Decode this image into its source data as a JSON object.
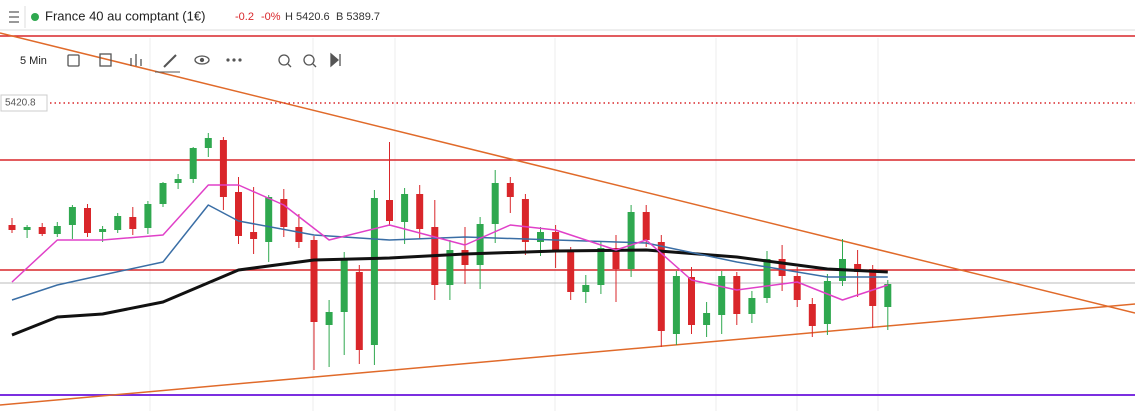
{
  "header": {
    "title": "France 40 au comptant (1€)",
    "change": "-0.2",
    "change_pct": "-0%",
    "high": "H 5420.6",
    "low": "B 5389.7"
  },
  "toolbar": {
    "interval": "5 Min"
  },
  "chart_data": {
    "type": "candlestick",
    "ylim": [
      5359.2,
      5433.4
    ],
    "price_label": 5420.8,
    "up_color": "#2fa84f",
    "down_color": "#d9262a",
    "open": [
      5396.4,
      5395.4,
      5396.0,
      5394.6,
      5396.4,
      5399.8,
      5395.0,
      5395.4,
      5398.0,
      5395.8,
      5400.6,
      5404.8,
      5405.6,
      5411.8,
      5413.4,
      5403.0,
      5395.0,
      5393.0,
      5401.6,
      5396.0,
      5393.4,
      5376.4,
      5379.0,
      5387.0,
      5372.4,
      5401.4,
      5397.0,
      5402.6,
      5396.0,
      5384.4,
      5391.4,
      5388.4,
      5396.6,
      5404.8,
      5401.6,
      5393.0,
      5395.0,
      5391.0,
      5383.0,
      5384.4,
      5391.8,
      5387.6,
      5399.0,
      5393.0,
      5374.6,
      5386.0,
      5376.4,
      5378.4,
      5386.2,
      5378.6,
      5381.8,
      5389.6,
      5386.2,
      5380.6,
      5376.6,
      5385.2,
      5388.6,
      5387.6,
      5380.0
    ],
    "high": [
      5397.8,
      5396.4,
      5396.8,
      5397.0,
      5400.4,
      5400.6,
      5396.2,
      5398.8,
      5400.0,
      5401.2,
      5405.0,
      5406.6,
      5412.0,
      5414.8,
      5414.0,
      5406.0,
      5404.0,
      5402.4,
      5403.6,
      5398.6,
      5394.2,
      5381.4,
      5391.0,
      5388.4,
      5403.4,
      5413.0,
      5403.8,
      5404.4,
      5401.4,
      5393.4,
      5396.0,
      5398.0,
      5407.4,
      5406.0,
      5402.6,
      5396.0,
      5396.4,
      5392.0,
      5386.4,
      5393.2,
      5394.4,
      5400.4,
      5400.4,
      5394.4,
      5387.2,
      5388.0,
      5381.0,
      5387.2,
      5387.0,
      5383.2,
      5391.2,
      5392.4,
      5388.0,
      5381.8,
      5386.6,
      5393.6,
      5391.4,
      5388.4,
      5385.4
    ],
    "low": [
      5394.8,
      5393.8,
      5394.2,
      5394.0,
      5393.6,
      5394.0,
      5393.0,
      5394.8,
      5394.4,
      5394.6,
      5400.0,
      5403.6,
      5404.8,
      5410.0,
      5399.4,
      5392.6,
      5390.6,
      5389.0,
      5394.0,
      5391.8,
      5367.4,
      5368.0,
      5370.4,
      5368.6,
      5368.4,
      5396.2,
      5392.6,
      5393.6,
      5381.4,
      5381.4,
      5384.6,
      5383.6,
      5392.8,
      5398.8,
      5390.4,
      5390.2,
      5387.8,
      5381.4,
      5380.8,
      5382.6,
      5381.0,
      5386.0,
      5392.0,
      5372.0,
      5372.4,
      5374.6,
      5374.0,
      5374.6,
      5376.4,
      5376.8,
      5380.8,
      5383.2,
      5380.0,
      5374.0,
      5374.4,
      5384.2,
      5382.0,
      5375.8,
      5375.4
    ],
    "close": [
      5395.4,
      5396.0,
      5394.6,
      5396.2,
      5400.0,
      5394.8,
      5395.6,
      5398.2,
      5395.6,
      5400.6,
      5404.8,
      5405.6,
      5411.8,
      5413.8,
      5402.0,
      5394.2,
      5393.6,
      5402.0,
      5396.0,
      5393.0,
      5377.0,
      5379.0,
      5389.4,
      5371.4,
      5401.8,
      5397.2,
      5402.6,
      5395.6,
      5384.4,
      5391.4,
      5388.4,
      5396.6,
      5404.8,
      5402.0,
      5393.0,
      5395.0,
      5391.0,
      5383.0,
      5384.4,
      5391.8,
      5387.6,
      5399.0,
      5393.4,
      5375.2,
      5386.2,
      5376.4,
      5378.8,
      5386.2,
      5378.6,
      5381.8,
      5389.6,
      5386.2,
      5381.4,
      5376.2,
      5385.2,
      5389.6,
      5387.0,
      5380.2,
      5384.6
    ],
    "series": [
      {
        "color": "#111111",
        "x": [
          0,
          3,
          6,
          10,
          15,
          20,
          25,
          30,
          36,
          42,
          48,
          54,
          58
        ],
        "values": [
          5374.4,
          5378.0,
          5378.6,
          5381.0,
          5387.4,
          5389.4,
          5389.8,
          5390.6,
          5391.2,
          5391.4,
          5390.0,
          5387.6,
          5387.0
        ]
      },
      {
        "color": "#3a6ea5",
        "x": [
          0,
          3,
          6,
          10,
          13,
          15,
          20,
          25,
          30,
          36,
          42,
          48,
          54,
          58
        ],
        "values": [
          5381.4,
          5384.4,
          5386.4,
          5389.0,
          5400.4,
          5397.2,
          5394.4,
          5393.4,
          5394.0,
          5393.4,
          5392.8,
          5389.0,
          5386.0,
          5386.0
        ]
      },
      {
        "color": "#e040c8",
        "x": [
          0,
          3,
          6,
          10,
          13,
          15,
          18,
          21,
          25,
          30,
          33,
          36,
          40,
          42,
          45,
          48,
          52,
          55,
          58
        ],
        "values": [
          5385.0,
          5393.4,
          5393.4,
          5394.4,
          5404.4,
          5404.4,
          5400.4,
          5393.4,
          5396.4,
          5392.4,
          5396.4,
          5395.4,
          5391.4,
          5393.4,
          5385.4,
          5383.4,
          5385.0,
          5381.4,
          5384.4
        ]
      }
    ]
  }
}
